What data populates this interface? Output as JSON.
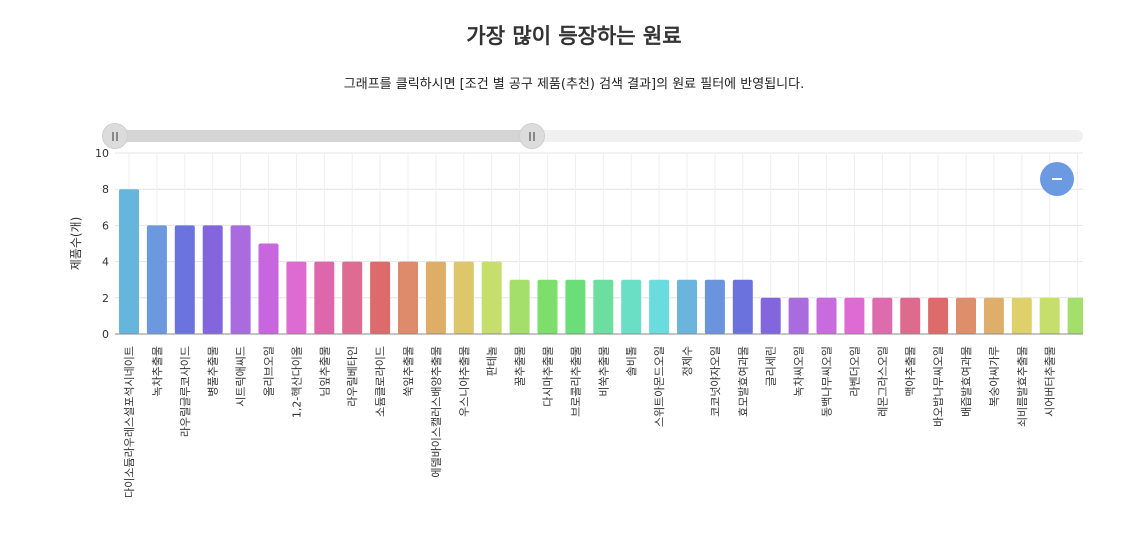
{
  "header": {
    "title": "가장 많이 등장하는 원료",
    "subtitle": "그래프를 클릭하시면 [조건 별 공구 제품(추천) 검색 결과]의 원료 필터에 반영됩니다."
  },
  "chart_data": {
    "type": "bar",
    "ylabel": "제품수(개)",
    "ylim": [
      0,
      10
    ],
    "yticks": [
      0,
      2,
      4,
      6,
      8,
      10
    ],
    "grid": true,
    "categories": [
      "다이소듐라우레스설포석시네이트",
      "녹차추출물",
      "라우릴글루코사이드",
      "병풀추출물",
      "시트릭애씨드",
      "올리브오일",
      "1,2-헥산다이올",
      "님잎추출물",
      "라우릴베타인",
      "소듐클로라이드",
      "쑥잎추출물",
      "에델바이스캘러스배양추출물",
      "우스니아추출물",
      "판테놀",
      "꿀추출물",
      "다시마추출물",
      "브로콜리추출물",
      "비쑥추출물",
      "솔비톨",
      "스위트아몬드오일",
      "정제수",
      "코코넛야자오일",
      "효모발효여과물",
      "글리세린",
      "녹차씨오일",
      "동백나무씨오일",
      "라벤더오일",
      "레몬그라스오일",
      "맥아추출물",
      "바오밥나무씨오일",
      "배즙발효여과물",
      "복숭아씨가루",
      "쇠비름발효추출물",
      "시어버터추출물",
      ""
    ],
    "values": [
      8,
      6,
      6,
      6,
      6,
      5,
      4,
      4,
      4,
      4,
      4,
      4,
      4,
      4,
      3,
      3,
      3,
      3,
      3,
      3,
      3,
      3,
      3,
      2,
      2,
      2,
      2,
      2,
      2,
      2,
      2,
      2,
      2,
      2,
      2
    ],
    "colors": [
      "#66b5dc",
      "#6b98de",
      "#6b73de",
      "#8366de",
      "#a96bde",
      "#c766de",
      "#de6bd2",
      "#de66ab",
      "#de6b91",
      "#de6b6b",
      "#de8b6b",
      "#dead66",
      "#dec66b",
      "#c6de6b",
      "#a4de6b",
      "#7ede6b",
      "#6bde7a",
      "#6bdea0",
      "#6bdec6",
      "#6bdcde",
      "#6bb4de",
      "#6b94de",
      "#6b72de",
      "#8166de",
      "#a96bde",
      "#c76bde",
      "#de6bd4",
      "#de6bae",
      "#de6b8d",
      "#de6b6b",
      "#de8e6b",
      "#deaf6b",
      "#ded06b",
      "#c6de6b",
      "#a4de6b"
    ]
  },
  "controls": {
    "range_start": 0,
    "range_end": 0.44,
    "zoom_icon": "minus-icon"
  }
}
